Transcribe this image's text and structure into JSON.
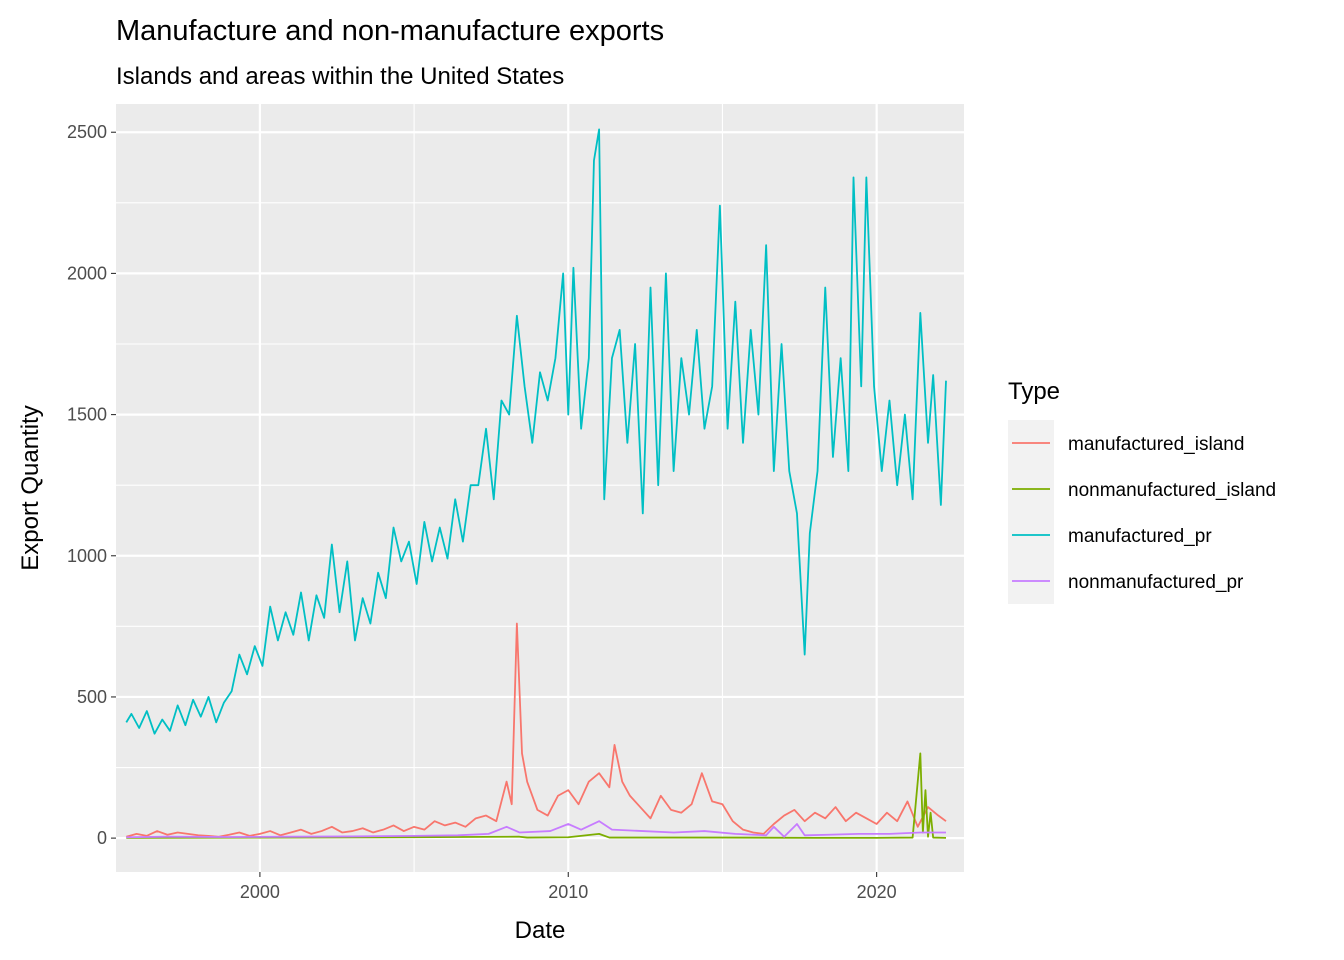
{
  "chart_data": {
    "type": "line",
    "title": "Manufacture and non-manufacture exports",
    "subtitle": "Islands and areas within the United States",
    "xlabel": "Date",
    "ylabel": "Export Quantity",
    "xlim": [
      "1995-05-01",
      "2022-11-01"
    ],
    "ylim": [
      -120,
      2600
    ],
    "x_ticks": [
      {
        "value": "2000-01-01",
        "label": "2000"
      },
      {
        "value": "2010-01-01",
        "label": "2010"
      },
      {
        "value": "2020-01-01",
        "label": "2020"
      }
    ],
    "y_ticks": [
      0,
      500,
      1000,
      1500,
      2000,
      2500
    ],
    "y_tick_labels": [
      "0",
      "500",
      "1000",
      "1500",
      "2000",
      "2500"
    ],
    "grid": true,
    "panel_background": "#ebebeb",
    "legend": {
      "title": "Type",
      "position": "right"
    },
    "series": [
      {
        "name": "manufactured_island",
        "color": "#f8766d",
        "points": [
          [
            "1995-09-01",
            5
          ],
          [
            "1996-01-01",
            15
          ],
          [
            "1996-05-01",
            8
          ],
          [
            "1996-09-01",
            25
          ],
          [
            "1997-01-01",
            12
          ],
          [
            "1997-05-01",
            20
          ],
          [
            "1997-09-01",
            15
          ],
          [
            "1998-01-01",
            10
          ],
          [
            "1998-05-01",
            8
          ],
          [
            "1998-09-01",
            5
          ],
          [
            "1999-01-01",
            12
          ],
          [
            "1999-05-01",
            20
          ],
          [
            "1999-09-01",
            8
          ],
          [
            "2000-01-01",
            15
          ],
          [
            "2000-05-01",
            25
          ],
          [
            "2000-09-01",
            10
          ],
          [
            "2001-01-01",
            20
          ],
          [
            "2001-05-01",
            30
          ],
          [
            "2001-09-01",
            15
          ],
          [
            "2002-01-01",
            25
          ],
          [
            "2002-05-01",
            40
          ],
          [
            "2002-09-01",
            20
          ],
          [
            "2003-01-01",
            25
          ],
          [
            "2003-05-01",
            35
          ],
          [
            "2003-09-01",
            20
          ],
          [
            "2004-01-01",
            30
          ],
          [
            "2004-05-01",
            45
          ],
          [
            "2004-09-01",
            25
          ],
          [
            "2005-01-01",
            40
          ],
          [
            "2005-05-01",
            30
          ],
          [
            "2005-09-01",
            60
          ],
          [
            "2006-01-01",
            45
          ],
          [
            "2006-05-01",
            55
          ],
          [
            "2006-09-01",
            40
          ],
          [
            "2007-01-01",
            70
          ],
          [
            "2007-05-01",
            80
          ],
          [
            "2007-09-01",
            60
          ],
          [
            "2008-01-01",
            200
          ],
          [
            "2008-03-01",
            120
          ],
          [
            "2008-05-01",
            760
          ],
          [
            "2008-07-01",
            300
          ],
          [
            "2008-09-01",
            200
          ],
          [
            "2009-01-01",
            100
          ],
          [
            "2009-05-01",
            80
          ],
          [
            "2009-09-01",
            150
          ],
          [
            "2010-01-01",
            170
          ],
          [
            "2010-05-01",
            120
          ],
          [
            "2010-09-01",
            200
          ],
          [
            "2011-01-01",
            230
          ],
          [
            "2011-05-01",
            180
          ],
          [
            "2011-07-01",
            330
          ],
          [
            "2011-10-01",
            200
          ],
          [
            "2012-01-01",
            150
          ],
          [
            "2012-05-01",
            110
          ],
          [
            "2012-09-01",
            70
          ],
          [
            "2013-01-01",
            150
          ],
          [
            "2013-05-01",
            100
          ],
          [
            "2013-09-01",
            90
          ],
          [
            "2014-01-01",
            120
          ],
          [
            "2014-05-01",
            230
          ],
          [
            "2014-09-01",
            130
          ],
          [
            "2015-01-01",
            120
          ],
          [
            "2015-05-01",
            60
          ],
          [
            "2015-09-01",
            30
          ],
          [
            "2016-01-01",
            20
          ],
          [
            "2016-05-01",
            15
          ],
          [
            "2016-09-01",
            50
          ],
          [
            "2017-01-01",
            80
          ],
          [
            "2017-05-01",
            100
          ],
          [
            "2017-09-01",
            60
          ],
          [
            "2018-01-01",
            90
          ],
          [
            "2018-05-01",
            70
          ],
          [
            "2018-09-01",
            110
          ],
          [
            "2019-01-01",
            60
          ],
          [
            "2019-05-01",
            90
          ],
          [
            "2019-09-01",
            70
          ],
          [
            "2020-01-01",
            50
          ],
          [
            "2020-05-01",
            90
          ],
          [
            "2020-09-01",
            60
          ],
          [
            "2021-01-01",
            130
          ],
          [
            "2021-05-01",
            40
          ],
          [
            "2021-09-01",
            110
          ],
          [
            "2022-01-01",
            80
          ],
          [
            "2022-04-01",
            60
          ]
        ]
      },
      {
        "name": "nonmanufactured_island",
        "color": "#7cae00",
        "points": [
          [
            "1995-09-01",
            1
          ],
          [
            "2000-01-01",
            2
          ],
          [
            "2005-01-01",
            3
          ],
          [
            "2008-06-01",
            5
          ],
          [
            "2008-09-01",
            2
          ],
          [
            "2010-01-01",
            3
          ],
          [
            "2011-01-01",
            15
          ],
          [
            "2011-05-01",
            2
          ],
          [
            "2015-01-01",
            2
          ],
          [
            "2018-01-01",
            1
          ],
          [
            "2020-01-01",
            1
          ],
          [
            "2021-03-01",
            2
          ],
          [
            "2021-06-01",
            300
          ],
          [
            "2021-07-01",
            20
          ],
          [
            "2021-08-01",
            170
          ],
          [
            "2021-09-01",
            5
          ],
          [
            "2021-10-01",
            90
          ],
          [
            "2021-11-01",
            2
          ],
          [
            "2022-04-01",
            1
          ]
        ]
      },
      {
        "name": "manufactured_pr",
        "color": "#00bfc4",
        "points": [
          [
            "1995-09-01",
            410
          ],
          [
            "1995-11-01",
            440
          ],
          [
            "1996-02-01",
            390
          ],
          [
            "1996-05-01",
            450
          ],
          [
            "1996-08-01",
            370
          ],
          [
            "1996-11-01",
            420
          ],
          [
            "1997-02-01",
            380
          ],
          [
            "1997-05-01",
            470
          ],
          [
            "1997-08-01",
            400
          ],
          [
            "1997-11-01",
            490
          ],
          [
            "1998-02-01",
            430
          ],
          [
            "1998-05-01",
            500
          ],
          [
            "1998-08-01",
            410
          ],
          [
            "1998-11-01",
            480
          ],
          [
            "1999-02-01",
            520
          ],
          [
            "1999-05-01",
            650
          ],
          [
            "1999-08-01",
            580
          ],
          [
            "1999-11-01",
            680
          ],
          [
            "2000-02-01",
            610
          ],
          [
            "2000-05-01",
            820
          ],
          [
            "2000-08-01",
            700
          ],
          [
            "2000-11-01",
            800
          ],
          [
            "2001-02-01",
            720
          ],
          [
            "2001-05-01",
            870
          ],
          [
            "2001-08-01",
            700
          ],
          [
            "2001-11-01",
            860
          ],
          [
            "2002-02-01",
            780
          ],
          [
            "2002-05-01",
            1040
          ],
          [
            "2002-08-01",
            800
          ],
          [
            "2002-11-01",
            980
          ],
          [
            "2003-02-01",
            700
          ],
          [
            "2003-05-01",
            850
          ],
          [
            "2003-08-01",
            760
          ],
          [
            "2003-11-01",
            940
          ],
          [
            "2004-02-01",
            850
          ],
          [
            "2004-05-01",
            1100
          ],
          [
            "2004-08-01",
            980
          ],
          [
            "2004-11-01",
            1050
          ],
          [
            "2005-02-01",
            900
          ],
          [
            "2005-05-01",
            1120
          ],
          [
            "2005-08-01",
            980
          ],
          [
            "2005-11-01",
            1100
          ],
          [
            "2006-02-01",
            990
          ],
          [
            "2006-05-01",
            1200
          ],
          [
            "2006-08-01",
            1050
          ],
          [
            "2006-11-01",
            1250
          ],
          [
            "2007-02-01",
            1250
          ],
          [
            "2007-05-01",
            1450
          ],
          [
            "2007-08-01",
            1200
          ],
          [
            "2007-11-01",
            1550
          ],
          [
            "2008-02-01",
            1500
          ],
          [
            "2008-05-01",
            1850
          ],
          [
            "2008-08-01",
            1600
          ],
          [
            "2008-11-01",
            1400
          ],
          [
            "2009-02-01",
            1650
          ],
          [
            "2009-05-01",
            1550
          ],
          [
            "2009-08-01",
            1700
          ],
          [
            "2009-11-01",
            2000
          ],
          [
            "2010-01-01",
            1500
          ],
          [
            "2010-03-01",
            2020
          ],
          [
            "2010-06-01",
            1450
          ],
          [
            "2010-09-01",
            1700
          ],
          [
            "2010-11-01",
            2400
          ],
          [
            "2011-01-01",
            2510
          ],
          [
            "2011-03-01",
            1200
          ],
          [
            "2011-06-01",
            1700
          ],
          [
            "2011-09-01",
            1800
          ],
          [
            "2011-12-01",
            1400
          ],
          [
            "2012-03-01",
            1750
          ],
          [
            "2012-06-01",
            1150
          ],
          [
            "2012-09-01",
            1950
          ],
          [
            "2012-12-01",
            1250
          ],
          [
            "2013-03-01",
            2000
          ],
          [
            "2013-06-01",
            1300
          ],
          [
            "2013-09-01",
            1700
          ],
          [
            "2013-12-01",
            1500
          ],
          [
            "2014-03-01",
            1800
          ],
          [
            "2014-06-01",
            1450
          ],
          [
            "2014-09-01",
            1600
          ],
          [
            "2014-12-01",
            2240
          ],
          [
            "2015-03-01",
            1450
          ],
          [
            "2015-06-01",
            1900
          ],
          [
            "2015-09-01",
            1400
          ],
          [
            "2015-12-01",
            1800
          ],
          [
            "2016-03-01",
            1500
          ],
          [
            "2016-06-01",
            2100
          ],
          [
            "2016-09-01",
            1300
          ],
          [
            "2016-12-01",
            1750
          ],
          [
            "2017-03-01",
            1300
          ],
          [
            "2017-06-01",
            1150
          ],
          [
            "2017-09-01",
            650
          ],
          [
            "2017-11-01",
            1080
          ],
          [
            "2018-02-01",
            1300
          ],
          [
            "2018-05-01",
            1950
          ],
          [
            "2018-08-01",
            1350
          ],
          [
            "2018-11-01",
            1700
          ],
          [
            "2019-02-01",
            1300
          ],
          [
            "2019-04-01",
            2340
          ],
          [
            "2019-07-01",
            1600
          ],
          [
            "2019-09-01",
            2340
          ],
          [
            "2019-12-01",
            1600
          ],
          [
            "2020-03-01",
            1300
          ],
          [
            "2020-06-01",
            1550
          ],
          [
            "2020-09-01",
            1250
          ],
          [
            "2020-12-01",
            1500
          ],
          [
            "2021-03-01",
            1200
          ],
          [
            "2021-06-01",
            1860
          ],
          [
            "2021-09-01",
            1400
          ],
          [
            "2021-11-01",
            1640
          ],
          [
            "2022-02-01",
            1180
          ],
          [
            "2022-04-01",
            1620
          ]
        ]
      },
      {
        "name": "nonmanufactured_pr",
        "color": "#c77cff",
        "points": [
          [
            "1995-09-01",
            3
          ],
          [
            "1997-01-01",
            5
          ],
          [
            "1999-01-01",
            4
          ],
          [
            "2001-01-01",
            5
          ],
          [
            "2003-01-01",
            6
          ],
          [
            "2005-01-01",
            8
          ],
          [
            "2006-06-01",
            10
          ],
          [
            "2007-06-01",
            15
          ],
          [
            "2008-01-01",
            40
          ],
          [
            "2008-06-01",
            20
          ],
          [
            "2009-06-01",
            25
          ],
          [
            "2010-01-01",
            50
          ],
          [
            "2010-06-01",
            30
          ],
          [
            "2011-01-01",
            60
          ],
          [
            "2011-06-01",
            30
          ],
          [
            "2012-06-01",
            25
          ],
          [
            "2013-06-01",
            20
          ],
          [
            "2014-06-01",
            25
          ],
          [
            "2015-06-01",
            15
          ],
          [
            "2016-06-01",
            10
          ],
          [
            "2016-09-01",
            40
          ],
          [
            "2017-01-01",
            5
          ],
          [
            "2017-06-01",
            50
          ],
          [
            "2017-09-01",
            10
          ],
          [
            "2018-06-01",
            12
          ],
          [
            "2019-06-01",
            15
          ],
          [
            "2020-06-01",
            15
          ],
          [
            "2021-06-01",
            20
          ],
          [
            "2022-04-01",
            20
          ]
        ]
      }
    ]
  }
}
